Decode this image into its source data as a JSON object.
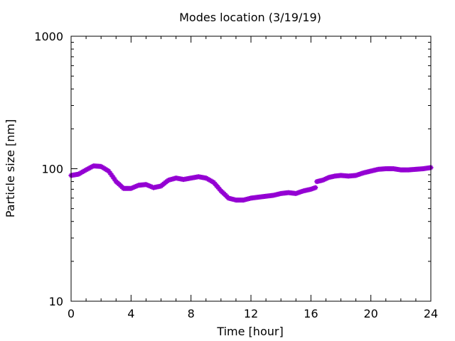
{
  "chart_data": {
    "type": "scatter",
    "title": "Modes location (3/19/19)",
    "xlabel": "Time [hour]",
    "ylabel": "Particle size [nm]",
    "xlim": [
      0,
      24
    ],
    "ylim": [
      10,
      1000
    ],
    "y_scale": "log",
    "grid": false,
    "legend": "none",
    "x_ticks": [
      0,
      4,
      8,
      12,
      16,
      20,
      24
    ],
    "x_tick_labels": [
      "0",
      "4",
      "8",
      "12",
      "16",
      "20",
      "24"
    ],
    "y_ticks": [
      10,
      100,
      1000
    ],
    "y_tick_labels": [
      "10",
      "100",
      "1000"
    ],
    "marker_color": "#9400d3",
    "series": [
      {
        "x": [
          0.0,
          0.5,
          1.0,
          1.5,
          2.0,
          2.5,
          3.0,
          3.5,
          4.0,
          4.5,
          5.0,
          5.5,
          6.0,
          6.5,
          7.0,
          7.5,
          8.0,
          8.5,
          9.0,
          9.5,
          10.0,
          10.5,
          11.0,
          11.5,
          12.0,
          12.5,
          13.0,
          13.5,
          14.0,
          14.5,
          15.0,
          15.5,
          16.0,
          16.3,
          16.4,
          16.8,
          17.2,
          17.6,
          18.0,
          18.5,
          19.0,
          19.5,
          20.0,
          20.5,
          21.0,
          21.5,
          22.0,
          22.5,
          23.0,
          23.5,
          24.0
        ],
        "y": [
          89,
          91,
          98,
          105,
          104,
          96,
          80,
          71,
          71,
          75,
          76,
          72,
          74,
          82,
          85,
          83,
          85,
          87,
          85,
          79,
          68,
          60,
          58,
          58,
          60,
          61,
          62,
          63,
          65,
          66,
          65,
          68,
          70,
          72,
          80,
          82,
          86,
          88,
          89,
          88,
          89,
          93,
          96,
          99,
          100,
          100,
          98,
          98,
          99,
          100,
          102
        ]
      }
    ]
  }
}
